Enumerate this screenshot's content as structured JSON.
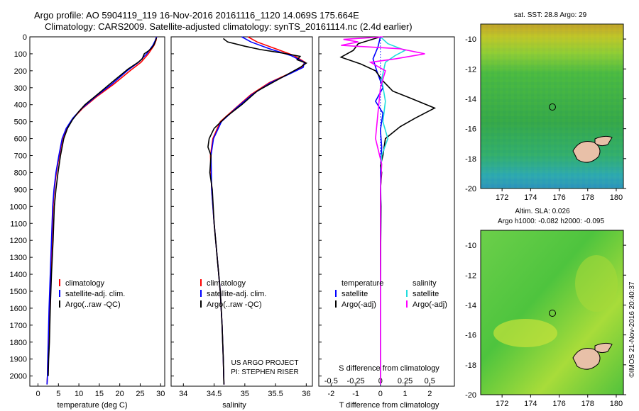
{
  "header": {
    "line1": "Argo profile: AO 5904119_119 16-Nov-2016 20161116_1120 14.069S 175.664E",
    "line2": "Climatology: CARS2009. Satellite-adjusted climatology: synTS_20161114.nc (2.4d earlier)"
  },
  "colors": {
    "climatology": "#ff0000",
    "satellite": "#0000ff",
    "argo": "#000000",
    "sat_s": "#22dddd",
    "argo_s": "#ff00ff"
  },
  "chart_data": [
    {
      "type": "line",
      "id": "temperature",
      "xlabel": "temperature (deg C)",
      "ylabel": "",
      "xlim": [
        -2,
        31
      ],
      "ylim": [
        2060,
        0
      ],
      "xticks": [
        0,
        5,
        10,
        15,
        20,
        25,
        30
      ],
      "yticks": [
        0,
        100,
        200,
        300,
        400,
        500,
        600,
        700,
        800,
        900,
        1000,
        1100,
        1200,
        1300,
        1400,
        1500,
        1600,
        1700,
        1800,
        1900,
        2000
      ],
      "legend": [
        "climatology",
        "satellite-adj. clim.",
        "Argo(..raw -QC)"
      ],
      "series": [
        {
          "name": "climatology",
          "color": "#ff0000",
          "points": [
            [
              29.0,
              0
            ],
            [
              28.9,
              20
            ],
            [
              28.4,
              50
            ],
            [
              27.0,
              100
            ],
            [
              25.2,
              150
            ],
            [
              22.5,
              200
            ],
            [
              18.5,
              280
            ],
            [
              14.5,
              350
            ],
            [
              11.0,
              420
            ],
            [
              8.6,
              480
            ],
            [
              7.0,
              540
            ],
            [
              6.0,
              600
            ],
            [
              5.2,
              700
            ],
            [
              4.5,
              800
            ],
            [
              4.0,
              900
            ],
            [
              3.7,
              1000
            ],
            [
              3.4,
              1200
            ],
            [
              3.1,
              1400
            ],
            [
              2.8,
              1600
            ],
            [
              2.6,
              1800
            ],
            [
              2.4,
              1900
            ],
            [
              2.3,
              2000
            ],
            [
              2.2,
              2050
            ]
          ]
        },
        {
          "name": "satellite-adj. clim.",
          "color": "#0000ff",
          "points": [
            [
              29.0,
              0
            ],
            [
              28.7,
              20
            ],
            [
              28.1,
              50
            ],
            [
              26.6,
              100
            ],
            [
              24.6,
              150
            ],
            [
              21.8,
              200
            ],
            [
              18.0,
              280
            ],
            [
              14.2,
              350
            ],
            [
              10.8,
              420
            ],
            [
              8.5,
              480
            ],
            [
              6.9,
              540
            ],
            [
              5.9,
              600
            ],
            [
              5.1,
              700
            ],
            [
              4.4,
              800
            ],
            [
              3.9,
              900
            ],
            [
              3.6,
              1000
            ],
            [
              3.3,
              1200
            ],
            [
              3.0,
              1400
            ],
            [
              2.7,
              1600
            ],
            [
              2.5,
              1800
            ],
            [
              2.4,
              1900
            ],
            [
              2.3,
              2000
            ],
            [
              2.2,
              2050
            ]
          ]
        },
        {
          "name": "Argo(..raw -QC)",
          "color": "#000000",
          "points": [
            [
              29.0,
              5
            ],
            [
              28.8,
              20
            ],
            [
              28.5,
              40
            ],
            [
              28.0,
              60
            ],
            [
              27.2,
              80
            ],
            [
              26.0,
              100
            ],
            [
              25.5,
              130
            ],
            [
              24.5,
              150
            ],
            [
              22.0,
              190
            ],
            [
              20.5,
              220
            ],
            [
              19.0,
              250
            ],
            [
              17.0,
              290
            ],
            [
              15.5,
              320
            ],
            [
              13.5,
              360
            ],
            [
              11.5,
              400
            ],
            [
              10.0,
              440
            ],
            [
              8.4,
              490
            ],
            [
              7.2,
              540
            ],
            [
              6.3,
              600
            ],
            [
              5.5,
              700
            ],
            [
              4.9,
              800
            ],
            [
              4.4,
              900
            ],
            [
              4.0,
              1000
            ],
            [
              3.7,
              1200
            ],
            [
              3.3,
              1400
            ],
            [
              3.0,
              1600
            ],
            [
              2.8,
              1800
            ],
            [
              2.6,
              1900
            ],
            [
              2.5,
              2000
            ]
          ]
        }
      ]
    },
    {
      "type": "line",
      "id": "salinity",
      "xlabel": "salinity",
      "ylabel": "",
      "xlim": [
        33.8,
        36.1
      ],
      "ylim": [
        2060,
        0
      ],
      "xticks": [
        34,
        34.5,
        35,
        35.5,
        36
      ],
      "legend": [
        "climatology",
        "satellite-adj. clim.",
        "Argo(..raw -QC)"
      ],
      "annotations": [
        "US ARGO PROJECT",
        "PI: STEPHEN RISER"
      ],
      "series": [
        {
          "name": "climatology",
          "color": "#ff0000",
          "points": [
            [
              35.05,
              0
            ],
            [
              35.2,
              30
            ],
            [
              35.5,
              70
            ],
            [
              35.8,
              110
            ],
            [
              35.98,
              150
            ],
            [
              35.92,
              180
            ],
            [
              35.7,
              220
            ],
            [
              35.4,
              270
            ],
            [
              35.1,
              340
            ],
            [
              34.85,
              420
            ],
            [
              34.6,
              500
            ],
            [
              34.48,
              600
            ],
            [
              34.44,
              700
            ],
            [
              34.46,
              900
            ],
            [
              34.5,
              1100
            ],
            [
              34.55,
              1300
            ],
            [
              34.6,
              1500
            ],
            [
              34.63,
              1700
            ],
            [
              34.65,
              1900
            ],
            [
              34.66,
              2050
            ]
          ]
        },
        {
          "name": "satellite-adj. clim.",
          "color": "#0000ff",
          "points": [
            [
              34.95,
              0
            ],
            [
              35.1,
              30
            ],
            [
              35.4,
              70
            ],
            [
              35.75,
              110
            ],
            [
              35.97,
              150
            ],
            [
              35.95,
              180
            ],
            [
              35.72,
              220
            ],
            [
              35.42,
              270
            ],
            [
              35.12,
              340
            ],
            [
              34.86,
              420
            ],
            [
              34.62,
              500
            ],
            [
              34.49,
              600
            ],
            [
              34.45,
              700
            ],
            [
              34.46,
              900
            ],
            [
              34.5,
              1100
            ],
            [
              34.55,
              1300
            ],
            [
              34.6,
              1500
            ],
            [
              34.63,
              1700
            ],
            [
              34.65,
              1900
            ],
            [
              34.66,
              2050
            ]
          ]
        },
        {
          "name": "Argo(..raw -QC)",
          "color": "#000000",
          "points": [
            [
              34.65,
              10
            ],
            [
              34.72,
              30
            ],
            [
              35.0,
              55
            ],
            [
              35.25,
              75
            ],
            [
              35.6,
              95
            ],
            [
              35.9,
              115
            ],
            [
              35.85,
              135
            ],
            [
              36.0,
              155
            ],
            [
              35.9,
              180
            ],
            [
              35.7,
              220
            ],
            [
              35.5,
              260
            ],
            [
              35.2,
              320
            ],
            [
              34.95,
              400
            ],
            [
              34.7,
              470
            ],
            [
              34.5,
              540
            ],
            [
              34.42,
              600
            ],
            [
              34.4,
              650
            ],
            [
              34.45,
              700
            ],
            [
              34.43,
              800
            ],
            [
              34.47,
              900
            ],
            [
              34.5,
              1100
            ],
            [
              34.55,
              1300
            ],
            [
              34.6,
              1500
            ],
            [
              34.63,
              1700
            ],
            [
              34.65,
              1900
            ],
            [
              34.66,
              2050
            ]
          ]
        }
      ]
    },
    {
      "type": "line",
      "id": "difference",
      "xlabel": "T difference from climatology",
      "xlabel_top": "S difference from climatology",
      "xlim": [
        -2.5,
        3.0
      ],
      "ylim": [
        2060,
        0
      ],
      "xticks": [
        -2,
        -1,
        0,
        1,
        2
      ],
      "sticks_labels": [
        "-0.5",
        "-0.25",
        "0",
        "0.25",
        "0.5"
      ],
      "legend_temperature": [
        "temperature",
        "satellite",
        "Argo(-adj)"
      ],
      "legend_salinity": [
        "salinity",
        "satellite",
        "Argo(-adj)"
      ],
      "series": [
        {
          "name": "satellite",
          "color": "#0000ff",
          "points": [
            [
              0,
              0
            ],
            [
              -0.1,
              60
            ],
            [
              -0.3,
              130
            ],
            [
              -0.15,
              200
            ],
            [
              0.1,
              300
            ],
            [
              -0.2,
              380
            ],
            [
              0.1,
              450
            ],
            [
              0.0,
              550
            ],
            [
              0.05,
              650
            ],
            [
              0,
              800
            ],
            [
              0.02,
              1000
            ],
            [
              0,
              1500
            ],
            [
              0,
              2050
            ]
          ]
        },
        {
          "name": "Argo(-adj)",
          "color": "#000000",
          "points": [
            [
              0,
              0
            ],
            [
              -0.9,
              40
            ],
            [
              -1.1,
              80
            ],
            [
              -1.6,
              120
            ],
            [
              -0.8,
              160
            ],
            [
              -0.2,
              200
            ],
            [
              0.1,
              260
            ],
            [
              0.5,
              320
            ],
            [
              1.2,
              360
            ],
            [
              2.2,
              420
            ],
            [
              1.4,
              480
            ],
            [
              0.8,
              530
            ],
            [
              0.2,
              600
            ],
            [
              0.1,
              700
            ],
            [
              0.0,
              760
            ],
            [
              0.05,
              800
            ],
            [
              0.0,
              900
            ],
            [
              0.02,
              1000
            ],
            [
              0,
              1500
            ],
            [
              0,
              2050
            ]
          ]
        },
        {
          "name": "satellite (S)",
          "color": "#22dddd",
          "points": [
            [
              0,
              0
            ],
            [
              0.3,
              40
            ],
            [
              1.0,
              80
            ],
            [
              0.6,
              110
            ],
            [
              0.2,
              150
            ],
            [
              0.05,
              250
            ],
            [
              0.2,
              380
            ],
            [
              0.1,
              500
            ],
            [
              0.3,
              600
            ],
            [
              0.05,
              700
            ],
            [
              0.0,
              900
            ],
            [
              0,
              1300
            ],
            [
              0,
              2050
            ]
          ]
        },
        {
          "name": "Argo(-adj) (S)",
          "color": "#ff00ff",
          "points": [
            [
              0.1,
              0
            ],
            [
              -1.5,
              15
            ],
            [
              -0.9,
              30
            ],
            [
              -1.6,
              50
            ],
            [
              0.8,
              70
            ],
            [
              1.8,
              100
            ],
            [
              0.6,
              130
            ],
            [
              -0.4,
              150
            ],
            [
              0.2,
              200
            ],
            [
              0.0,
              300
            ],
            [
              -0.1,
              450
            ],
            [
              -0.2,
              600
            ],
            [
              0.05,
              750
            ],
            [
              0.0,
              900
            ],
            [
              0,
              1300
            ],
            [
              0,
              2050
            ]
          ]
        }
      ]
    }
  ],
  "maps": {
    "sst": {
      "title": "sat. SST: 28.8 Argo: 29",
      "yticks": [
        "-10",
        "-12",
        "-14",
        "-16",
        "-18",
        "-20"
      ],
      "xticks": [
        "172",
        "174",
        "176",
        "178",
        "180"
      ],
      "lat_range": [
        -20,
        -9
      ],
      "lon_range": [
        170.5,
        180.5
      ],
      "argo_marker": {
        "lon": 175.664,
        "lat": -14.069
      }
    },
    "sla": {
      "title1": "Altim. SLA: 0.026",
      "title2": "Argo h1000: -0.082 h2000: -0.095",
      "yticks": [
        "-10",
        "-12",
        "-14",
        "-16",
        "-18",
        "-20"
      ],
      "xticks": [
        "172",
        "174",
        "176",
        "178",
        "180"
      ],
      "lat_range": [
        -20,
        -9
      ],
      "lon_range": [
        170.5,
        180.5
      ],
      "argo_marker": {
        "lon": 175.664,
        "lat": -14.069
      }
    },
    "credit": "©IMOS 21-Nov-2016 20:40:37"
  }
}
